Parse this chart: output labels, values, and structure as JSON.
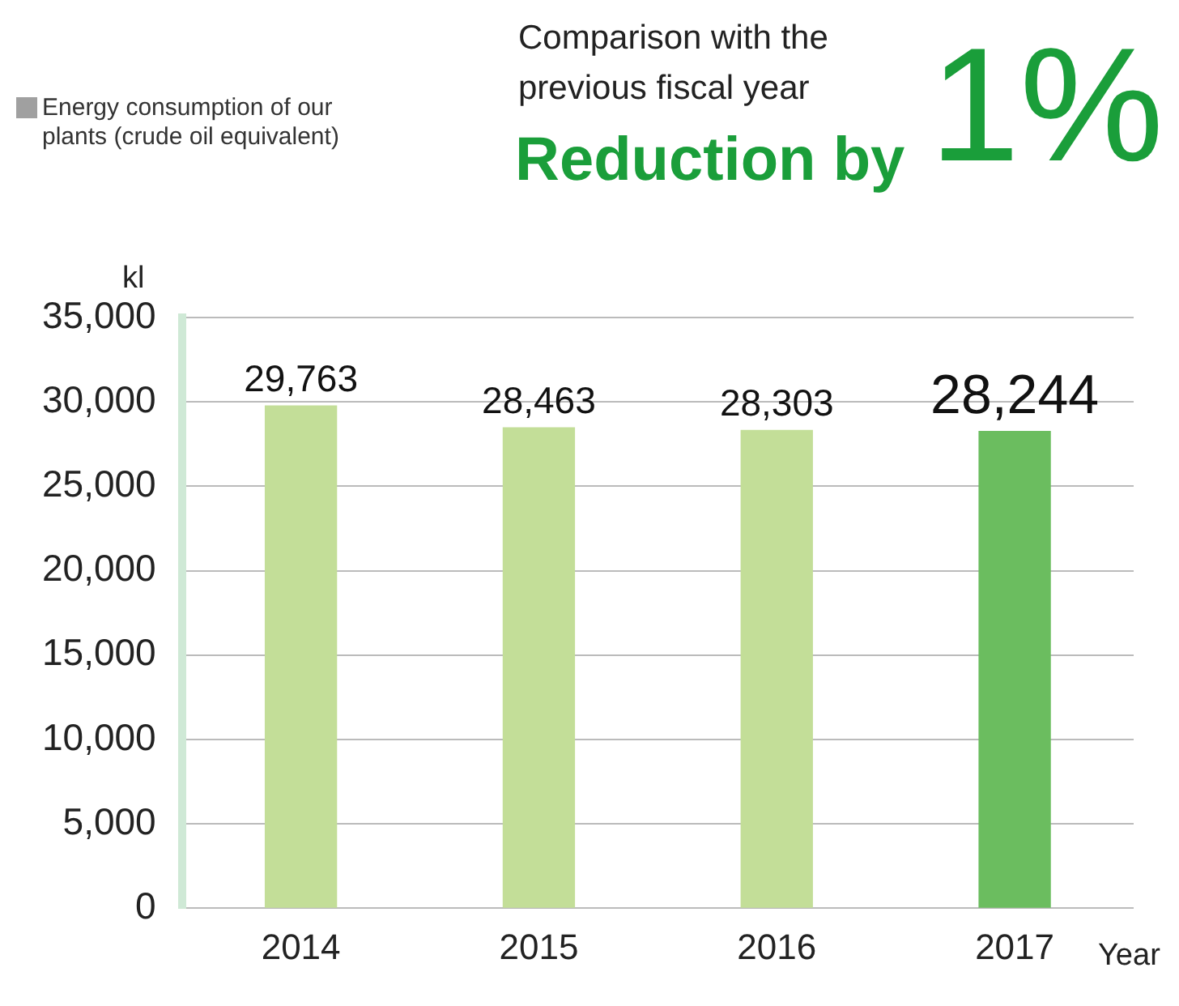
{
  "chart_data": {
    "type": "bar",
    "categories": [
      "2014",
      "2015",
      "2016",
      "2017"
    ],
    "series": [
      {
        "name": "Energy consumption of our plants (crude oil equivalent)",
        "color": "#a0a0a0",
        "colors": [
          "#c3de98",
          "#c3de98",
          "#c3de98",
          "#6bbd5f"
        ],
        "values": [
          29763,
          28463,
          28303,
          28244
        ],
        "value_labels": [
          "29,763",
          "28,463",
          "28,303",
          "28,244"
        ]
      }
    ],
    "ylabel": "kl",
    "xlabel": "Year",
    "ylim": [
      0,
      35000
    ],
    "yticks": [
      0,
      {
        "value": 5000,
        "label": "5,000"
      },
      {
        "value": 10000,
        "label": "10,000"
      },
      {
        "value": 15000,
        "label": "15,000"
      },
      {
        "value": 20000,
        "label": "20,000"
      },
      {
        "value": 25000,
        "label": "25,000"
      },
      {
        "value": 30000,
        "label": "30,000"
      },
      {
        "value": 35000,
        "label": "35,000"
      }
    ],
    "grid": "y",
    "legend": "top left",
    "annotations": [
      "Comparison with the previous fiscal year",
      "Reduction by",
      "1%"
    ]
  }
}
